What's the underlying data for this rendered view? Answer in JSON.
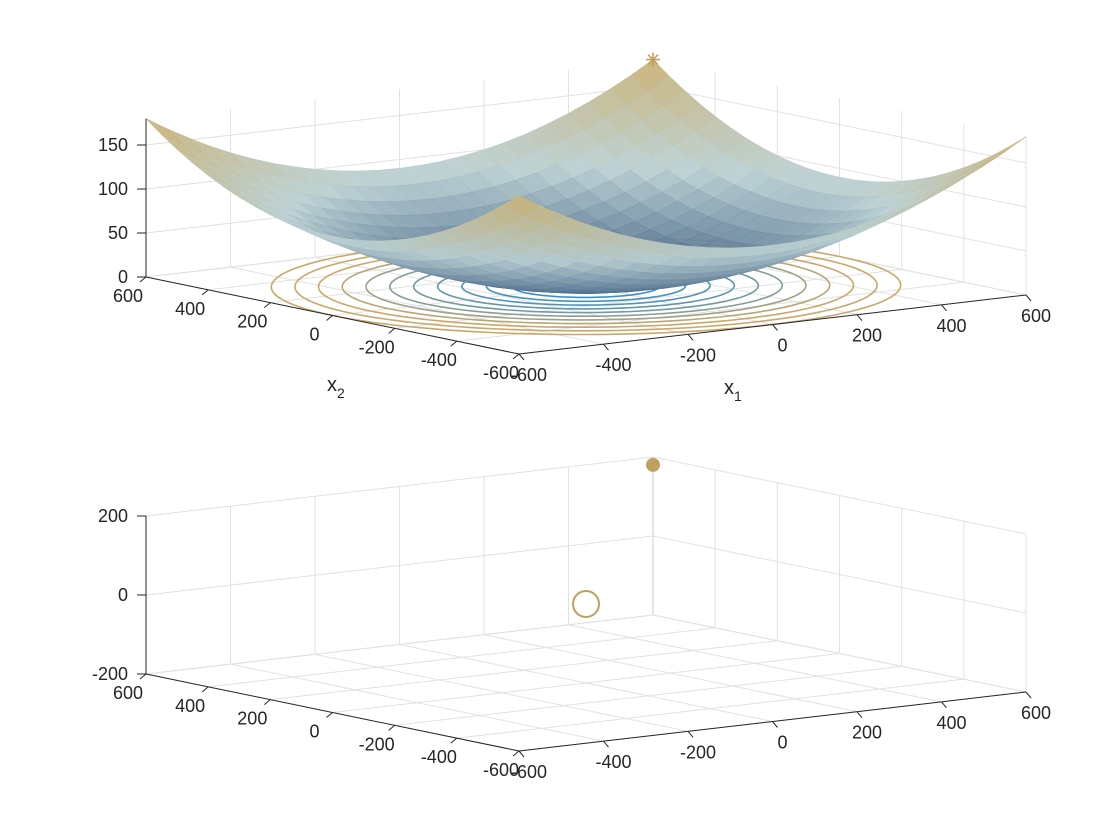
{
  "colors": {
    "surface_high": "#c9b071",
    "surface_mid": "#b9cfd2",
    "surface_low": "#3f5f82",
    "contour_low": "#2a8fd0",
    "contour_high": "#c9a86a",
    "marker": "#c0a05e",
    "axis": "#262626",
    "grid": "#e1e1e1"
  },
  "chart_data": [
    {
      "type": "surface",
      "title": "",
      "xlabel": "x",
      "xlabel_sub": "1",
      "ylabel": "x",
      "ylabel_sub": "2",
      "zlabel": "",
      "xlim": [
        -600,
        600
      ],
      "ylim": [
        -600,
        600
      ],
      "zlim": [
        0,
        180
      ],
      "x_ticks": [
        -600,
        -400,
        -200,
        0,
        200,
        400,
        600
      ],
      "y_ticks": [
        -600,
        -400,
        -200,
        0,
        200,
        400,
        600
      ],
      "z_ticks": [
        0,
        50,
        100,
        150
      ],
      "grid": true,
      "surface": "z = (x1^2 + x2^2) / 4000",
      "contour_levels": [
        2,
        5,
        9,
        14,
        20,
        27,
        35,
        44,
        54,
        65,
        77,
        90
      ],
      "markers": [
        {
          "symbol": "asterisk",
          "x": 600,
          "y": 600,
          "z": 180
        }
      ]
    },
    {
      "type": "scatter3d",
      "title": "",
      "xlabel": "",
      "ylabel": "",
      "zlabel": "",
      "xlim": [
        -600,
        600
      ],
      "ylim": [
        -600,
        600
      ],
      "zlim": [
        -200,
        200
      ],
      "x_ticks": [
        -600,
        -400,
        -200,
        0,
        200,
        400,
        600
      ],
      "y_ticks": [
        -600,
        -400,
        -200,
        0,
        200,
        400,
        600
      ],
      "z_ticks": [
        -200,
        0,
        200
      ],
      "grid": true,
      "points": [
        {
          "symbol": "filled-circle",
          "x": 600,
          "y": 600,
          "z": 180
        },
        {
          "symbol": "open-circle",
          "x": 0,
          "y": 0,
          "z": 0
        }
      ]
    }
  ]
}
